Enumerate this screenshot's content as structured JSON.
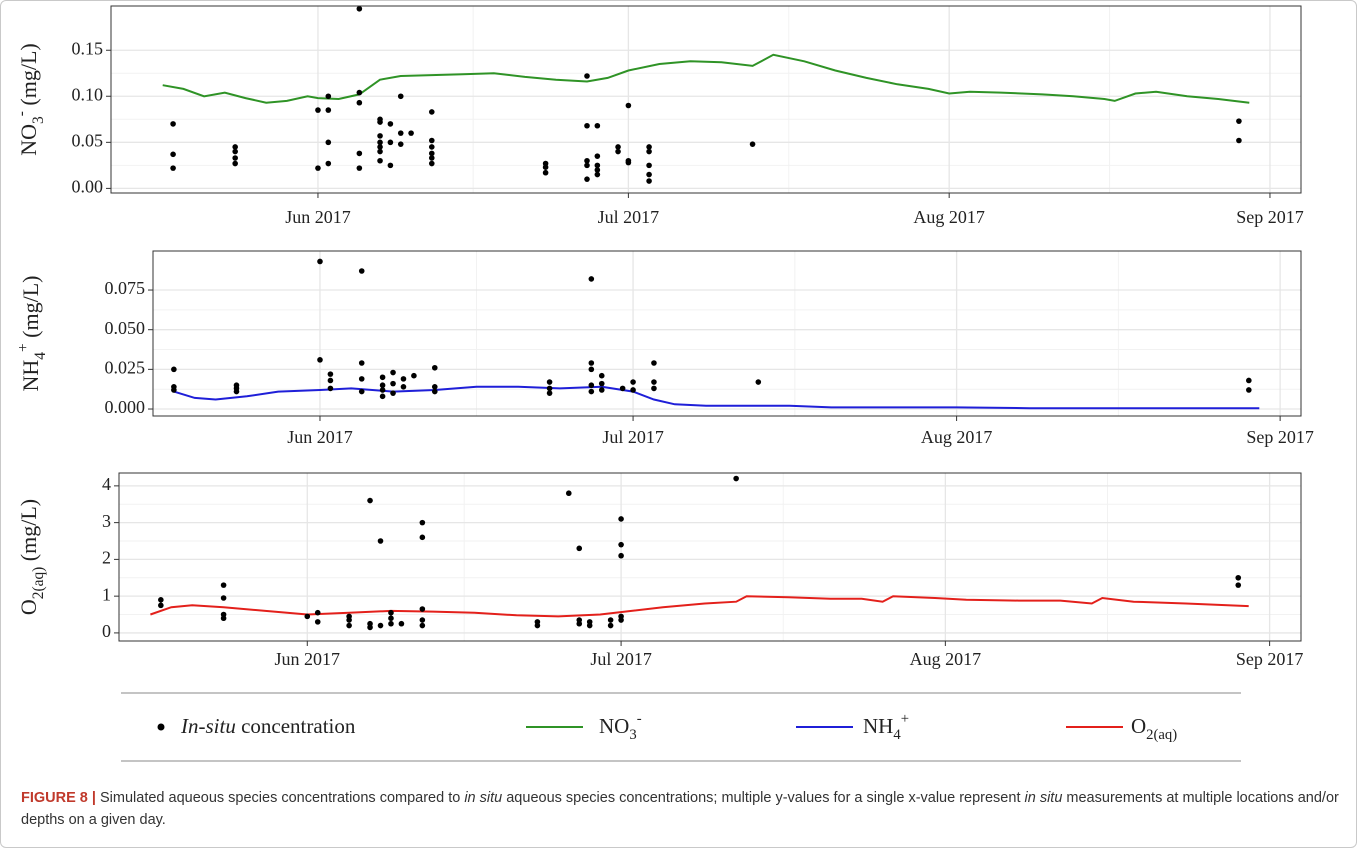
{
  "chart_data": [
    {
      "type": "line",
      "ylabel": "NO3- (mg/L)",
      "xlim": [
        "2017-05-12",
        "2017-09-04"
      ],
      "xticks": [
        {
          "value": "2017-06-01",
          "label": "Jun 2017"
        },
        {
          "value": "2017-07-01",
          "label": "Jul 2017"
        },
        {
          "value": "2017-08-01",
          "label": "Aug 2017"
        },
        {
          "value": "2017-09-01",
          "label": "Sep 2017"
        }
      ],
      "ylim": [
        -0.005,
        0.198
      ],
      "yticks": [
        {
          "value": 0,
          "label": "0.00"
        },
        {
          "value": 0.05,
          "label": "0.05"
        },
        {
          "value": 0.1,
          "label": "0.10"
        },
        {
          "value": 0.15,
          "label": "0.15"
        }
      ],
      "grid": true,
      "series": [
        {
          "name": "NO3-",
          "type": "line",
          "color": "#2f9326",
          "x": [
            "2017-05-17",
            "2017-05-19",
            "2017-05-21",
            "2017-05-23",
            "2017-05-25",
            "2017-05-27",
            "2017-05-29",
            "2017-05-31",
            "2017-06-01",
            "2017-06-03",
            "2017-06-05",
            "2017-06-07",
            "2017-06-09",
            "2017-06-12",
            "2017-06-15",
            "2017-06-18",
            "2017-06-21",
            "2017-06-24",
            "2017-06-27",
            "2017-06-29",
            "2017-07-01",
            "2017-07-04",
            "2017-07-07",
            "2017-07-10",
            "2017-07-13",
            "2017-07-15",
            "2017-07-18",
            "2017-07-21",
            "2017-07-24",
            "2017-07-27",
            "2017-07-30",
            "2017-08-01",
            "2017-08-03",
            "2017-08-06",
            "2017-08-10",
            "2017-08-13",
            "2017-08-16",
            "2017-08-17",
            "2017-08-19",
            "2017-08-21",
            "2017-08-24",
            "2017-08-27",
            "2017-08-30"
          ],
          "values": [
            0.112,
            0.108,
            0.1,
            0.104,
            0.098,
            0.093,
            0.095,
            0.1,
            0.098,
            0.097,
            0.102,
            0.118,
            0.122,
            0.123,
            0.124,
            0.125,
            0.121,
            0.118,
            0.116,
            0.12,
            0.128,
            0.135,
            0.138,
            0.137,
            0.133,
            0.145,
            0.138,
            0.128,
            0.12,
            0.113,
            0.108,
            0.103,
            0.105,
            0.104,
            0.102,
            0.1,
            0.097,
            0.095,
            0.103,
            0.105,
            0.1,
            0.097,
            0.093
          ]
        },
        {
          "name": "In-situ concentration",
          "type": "scatter",
          "color": "#000000",
          "x": [
            "2017-05-18",
            "2017-05-18",
            "2017-05-18",
            "2017-05-24",
            "2017-05-24",
            "2017-05-24",
            "2017-05-24",
            "2017-06-01",
            "2017-06-01",
            "2017-06-02",
            "2017-06-02",
            "2017-06-02",
            "2017-06-02",
            "2017-06-05",
            "2017-06-05",
            "2017-06-05",
            "2017-06-05",
            "2017-06-05",
            "2017-06-07",
            "2017-06-07",
            "2017-06-07",
            "2017-06-07",
            "2017-06-07",
            "2017-06-07",
            "2017-06-07",
            "2017-06-08",
            "2017-06-08",
            "2017-06-08",
            "2017-06-09",
            "2017-06-09",
            "2017-06-09",
            "2017-06-10",
            "2017-06-12",
            "2017-06-12",
            "2017-06-12",
            "2017-06-12",
            "2017-06-12",
            "2017-06-12",
            "2017-06-23",
            "2017-06-23",
            "2017-06-23",
            "2017-06-27",
            "2017-06-27",
            "2017-06-27",
            "2017-06-27",
            "2017-06-27",
            "2017-06-28",
            "2017-06-28",
            "2017-06-28",
            "2017-06-28",
            "2017-06-28",
            "2017-06-30",
            "2017-06-30",
            "2017-07-01",
            "2017-07-01",
            "2017-07-01",
            "2017-07-03",
            "2017-07-03",
            "2017-07-03",
            "2017-07-03",
            "2017-07-03",
            "2017-07-13",
            "2017-08-29",
            "2017-08-29"
          ],
          "values": [
            0.07,
            0.037,
            0.022,
            0.045,
            0.04,
            0.033,
            0.027,
            0.085,
            0.022,
            0.1,
            0.085,
            0.05,
            0.027,
            0.195,
            0.104,
            0.093,
            0.038,
            0.022,
            0.075,
            0.072,
            0.057,
            0.05,
            0.045,
            0.04,
            0.03,
            0.07,
            0.05,
            0.025,
            0.1,
            0.06,
            0.048,
            0.06,
            0.083,
            0.052,
            0.045,
            0.038,
            0.033,
            0.027,
            0.027,
            0.023,
            0.017,
            0.122,
            0.068,
            0.03,
            0.025,
            0.01,
            0.068,
            0.035,
            0.025,
            0.02,
            0.015,
            0.045,
            0.04,
            0.09,
            0.03,
            0.028,
            0.045,
            0.04,
            0.025,
            0.015,
            0.008,
            0.048,
            0.073,
            0.052
          ]
        }
      ]
    },
    {
      "type": "line",
      "ylabel": "NH4+ (mg/L)",
      "xlim": [
        "2017-05-16",
        "2017-09-03"
      ],
      "xticks": [
        {
          "value": "2017-06-01",
          "label": "Jun 2017"
        },
        {
          "value": "2017-07-01",
          "label": "Jul 2017"
        },
        {
          "value": "2017-08-01",
          "label": "Aug 2017"
        },
        {
          "value": "2017-09-01",
          "label": "Sep 2017"
        }
      ],
      "ylim": [
        -0.0044,
        0.0996
      ],
      "yticks": [
        {
          "value": 0,
          "label": "0.000"
        },
        {
          "value": 0.025,
          "label": "0.025"
        },
        {
          "value": 0.05,
          "label": "0.050"
        },
        {
          "value": 0.075,
          "label": "0.075"
        }
      ],
      "grid": true,
      "series": [
        {
          "name": "NH4+",
          "type": "line",
          "color": "#1f1fd8",
          "x": [
            "2017-05-18",
            "2017-05-20",
            "2017-05-22",
            "2017-05-25",
            "2017-05-28",
            "2017-06-01",
            "2017-06-04",
            "2017-06-08",
            "2017-06-12",
            "2017-06-16",
            "2017-06-20",
            "2017-06-24",
            "2017-06-28",
            "2017-07-01",
            "2017-07-03",
            "2017-07-05",
            "2017-07-08",
            "2017-07-12",
            "2017-07-16",
            "2017-07-20",
            "2017-07-25",
            "2017-08-01",
            "2017-08-08",
            "2017-08-15",
            "2017-08-22",
            "2017-08-30"
          ],
          "values": [
            0.011,
            0.007,
            0.006,
            0.008,
            0.011,
            0.012,
            0.013,
            0.011,
            0.012,
            0.014,
            0.014,
            0.013,
            0.014,
            0.011,
            0.006,
            0.003,
            0.002,
            0.002,
            0.002,
            0.001,
            0.001,
            0.001,
            0.0005,
            0.0005,
            0.0005,
            0.0005
          ]
        },
        {
          "name": "In-situ concentration",
          "type": "scatter",
          "color": "#000000",
          "x": [
            "2017-05-18",
            "2017-05-18",
            "2017-05-18",
            "2017-05-24",
            "2017-05-24",
            "2017-05-24",
            "2017-06-01",
            "2017-06-01",
            "2017-06-02",
            "2017-06-02",
            "2017-06-02",
            "2017-06-05",
            "2017-06-05",
            "2017-06-05",
            "2017-06-05",
            "2017-06-07",
            "2017-06-07",
            "2017-06-07",
            "2017-06-07",
            "2017-06-08",
            "2017-06-08",
            "2017-06-08",
            "2017-06-09",
            "2017-06-09",
            "2017-06-10",
            "2017-06-12",
            "2017-06-12",
            "2017-06-12",
            "2017-06-23",
            "2017-06-23",
            "2017-06-23",
            "2017-06-27",
            "2017-06-27",
            "2017-06-27",
            "2017-06-27",
            "2017-06-27",
            "2017-06-28",
            "2017-06-28",
            "2017-06-28",
            "2017-06-30",
            "2017-07-01",
            "2017-07-01",
            "2017-07-03",
            "2017-07-03",
            "2017-07-03",
            "2017-07-13",
            "2017-08-29",
            "2017-08-29"
          ],
          "values": [
            0.025,
            0.014,
            0.012,
            0.015,
            0.013,
            0.011,
            0.093,
            0.031,
            0.022,
            0.018,
            0.013,
            0.087,
            0.029,
            0.019,
            0.011,
            0.02,
            0.015,
            0.012,
            0.008,
            0.023,
            0.016,
            0.01,
            0.019,
            0.014,
            0.021,
            0.026,
            0.014,
            0.011,
            0.017,
            0.013,
            0.01,
            0.082,
            0.029,
            0.025,
            0.015,
            0.011,
            0.021,
            0.016,
            0.012,
            0.013,
            0.017,
            0.012,
            0.029,
            0.017,
            0.013,
            0.017,
            0.018,
            0.012
          ]
        }
      ]
    },
    {
      "type": "line",
      "ylabel": "O2(aq) (mg/L)",
      "xlim": [
        "2017-05-14",
        "2017-09-04"
      ],
      "xticks": [
        {
          "value": "2017-06-01",
          "label": "Jun 2017"
        },
        {
          "value": "2017-07-01",
          "label": "Jul 2017"
        },
        {
          "value": "2017-08-01",
          "label": "Aug 2017"
        },
        {
          "value": "2017-09-01",
          "label": "Sep 2017"
        }
      ],
      "ylim": [
        -0.22,
        4.35
      ],
      "yticks": [
        0,
        1,
        2,
        3,
        4
      ],
      "grid": true,
      "series": [
        {
          "name": "O2(aq)",
          "type": "line",
          "color": "#e3201b",
          "x": [
            "2017-05-17",
            "2017-05-19",
            "2017-05-21",
            "2017-05-24",
            "2017-05-28",
            "2017-06-01",
            "2017-06-05",
            "2017-06-09",
            "2017-06-13",
            "2017-06-17",
            "2017-06-21",
            "2017-06-25",
            "2017-06-29",
            "2017-07-02",
            "2017-07-05",
            "2017-07-09",
            "2017-07-12",
            "2017-07-13",
            "2017-07-17",
            "2017-07-21",
            "2017-07-24",
            "2017-07-26",
            "2017-07-27",
            "2017-07-31",
            "2017-08-03",
            "2017-08-08",
            "2017-08-12",
            "2017-08-15",
            "2017-08-16",
            "2017-08-19",
            "2017-08-24",
            "2017-08-30"
          ],
          "values": [
            0.5,
            0.7,
            0.75,
            0.7,
            0.6,
            0.5,
            0.55,
            0.6,
            0.58,
            0.55,
            0.48,
            0.45,
            0.5,
            0.6,
            0.7,
            0.8,
            0.85,
            1.0,
            0.97,
            0.93,
            0.93,
            0.85,
            1.0,
            0.95,
            0.9,
            0.88,
            0.88,
            0.8,
            0.95,
            0.85,
            0.8,
            0.73
          ]
        },
        {
          "name": "In-situ concentration",
          "type": "scatter",
          "color": "#000000",
          "x": [
            "2017-05-18",
            "2017-05-18",
            "2017-05-24",
            "2017-05-24",
            "2017-05-24",
            "2017-05-24",
            "2017-06-01",
            "2017-06-02",
            "2017-06-02",
            "2017-06-05",
            "2017-06-05",
            "2017-06-05",
            "2017-06-07",
            "2017-06-07",
            "2017-06-07",
            "2017-06-08",
            "2017-06-08",
            "2017-06-09",
            "2017-06-09",
            "2017-06-09",
            "2017-06-10",
            "2017-06-12",
            "2017-06-12",
            "2017-06-12",
            "2017-06-12",
            "2017-06-12",
            "2017-06-23",
            "2017-06-23",
            "2017-06-26",
            "2017-06-27",
            "2017-06-27",
            "2017-06-27",
            "2017-06-28",
            "2017-06-28",
            "2017-06-30",
            "2017-06-30",
            "2017-07-01",
            "2017-07-01",
            "2017-07-01",
            "2017-07-01",
            "2017-07-01",
            "2017-07-12",
            "2017-08-29",
            "2017-08-29"
          ],
          "values": [
            0.9,
            0.75,
            1.3,
            0.95,
            0.5,
            0.4,
            0.45,
            0.55,
            0.3,
            0.45,
            0.35,
            0.2,
            3.6,
            0.25,
            0.15,
            2.5,
            0.2,
            0.55,
            0.4,
            0.25,
            0.25,
            3.0,
            2.6,
            0.65,
            0.35,
            0.2,
            0.3,
            0.2,
            3.8,
            2.3,
            0.35,
            0.25,
            0.3,
            0.2,
            0.35,
            0.2,
            3.1,
            2.4,
            2.1,
            0.45,
            0.35,
            4.2,
            1.5,
            1.3
          ]
        }
      ]
    }
  ],
  "caption": {
    "label": "FIGURE 8 |",
    "parts": [
      " Simulated aqueous species concentrations compared to ",
      "in situ",
      " aqueous species concentrations; multiple y-values for a single x-value represent ",
      "in situ",
      " measurements at multiple locations and/or depths on a given day."
    ]
  }
}
